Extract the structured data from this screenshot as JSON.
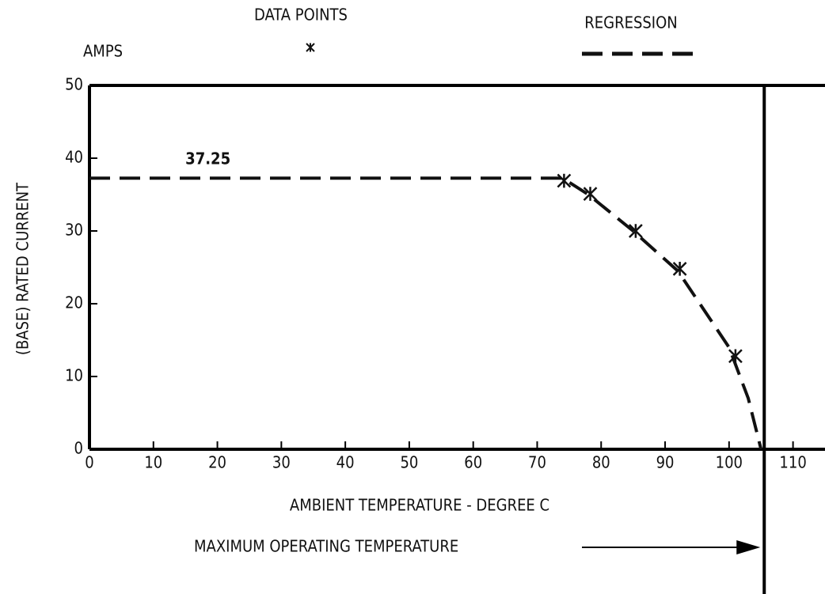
{
  "chart_data": {
    "type": "line",
    "y_unit": "AMPS",
    "xlabel": "AMBIENT TEMPERATURE - DEGREE C",
    "ylabel": "(BASE) RATED CURRENT",
    "xlim": [
      0,
      115
    ],
    "ylim": [
      0,
      50
    ],
    "xticks": [
      0,
      10,
      20,
      30,
      40,
      50,
      60,
      70,
      80,
      90,
      100,
      110
    ],
    "yticks": [
      0,
      10,
      20,
      30,
      40,
      50
    ],
    "series": [
      {
        "name": "DATA POINTS",
        "style": "markers",
        "color": "#111111",
        "x": [
          74.2,
          78.3,
          85.4,
          92.3,
          101
        ],
        "values": [
          36.9,
          35.1,
          30,
          24.8,
          12.8
        ]
      },
      {
        "name": "REGRESSION",
        "style": "dashed",
        "color": "#111111",
        "x": [
          0,
          74,
          78,
          85,
          92,
          100,
          103,
          105
        ],
        "values": [
          37.25,
          37.25,
          35,
          30,
          24.5,
          14,
          7,
          0
        ]
      }
    ],
    "annotation": {
      "text": "37.25",
      "x": 15,
      "y": 39.8
    },
    "max_temp_line": {
      "value": 105.5,
      "label": "MAXIMUM OPERATING TEMPERATURE"
    }
  }
}
